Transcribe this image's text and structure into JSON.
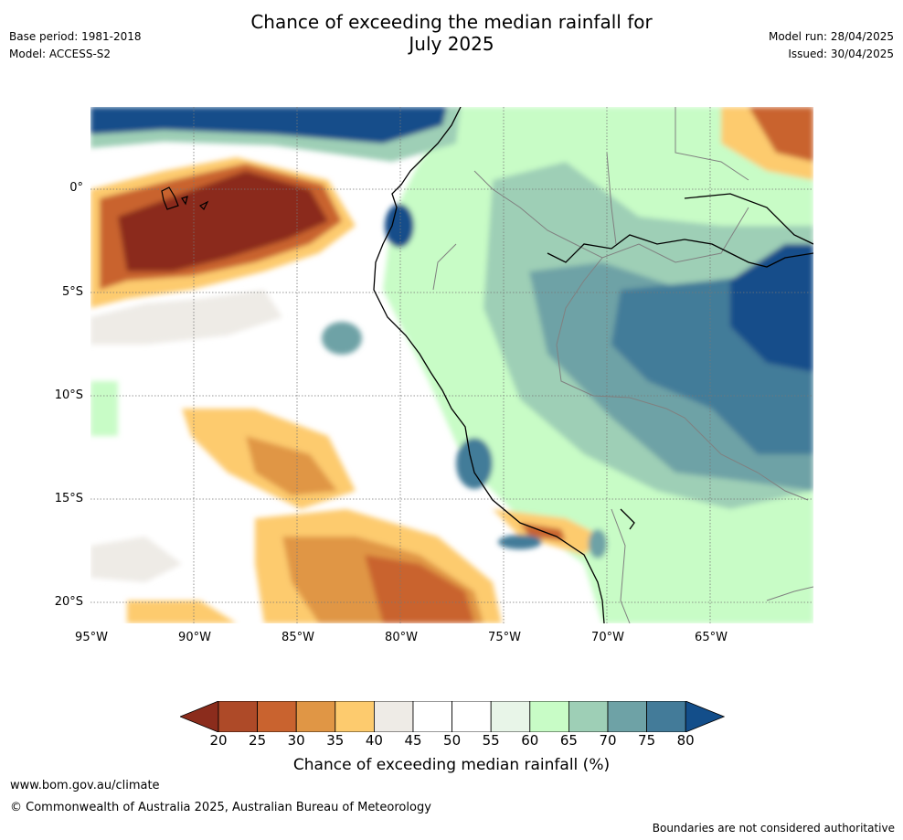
{
  "title_line1": "Chance of exceeding the median rainfall for",
  "title_line2": "July 2025",
  "base_period": "Base period: 1981-2018",
  "model": "Model: ACCESS-S2",
  "model_run": "Model run: 28/04/2025",
  "issued": "Issued: 30/04/2025",
  "latitude_labels": [
    "0°",
    "5°S",
    "10°S",
    "15°S",
    "20°S"
  ],
  "longitude_labels": [
    "95°W",
    "90°W",
    "85°W",
    "80°W",
    "75°W",
    "70°W",
    "65°W"
  ],
  "legend": {
    "title": "Chance of exceeding median rainfall (%)",
    "ticks": [
      "20",
      "25",
      "30",
      "35",
      "40",
      "45",
      "50",
      "55",
      "60",
      "65",
      "70",
      "75",
      "80"
    ],
    "colors": [
      "#8b2c1c",
      "#ae4a28",
      "#c9632f",
      "#e09645",
      "#fdcb6e",
      "#eeebe6",
      "#ffffff",
      "#ffffff",
      "#e8f5e8",
      "#c8fcc6",
      "#9ecfb6",
      "#6ea2a6",
      "#437b99",
      "#134e8a"
    ]
  },
  "footer": {
    "url": "www.bom.gov.au/climate",
    "copyright": "© Commonwealth of Australia 2025, Australian Bureau of Meteorology",
    "note": "Boundaries are not considered authoritative"
  }
}
